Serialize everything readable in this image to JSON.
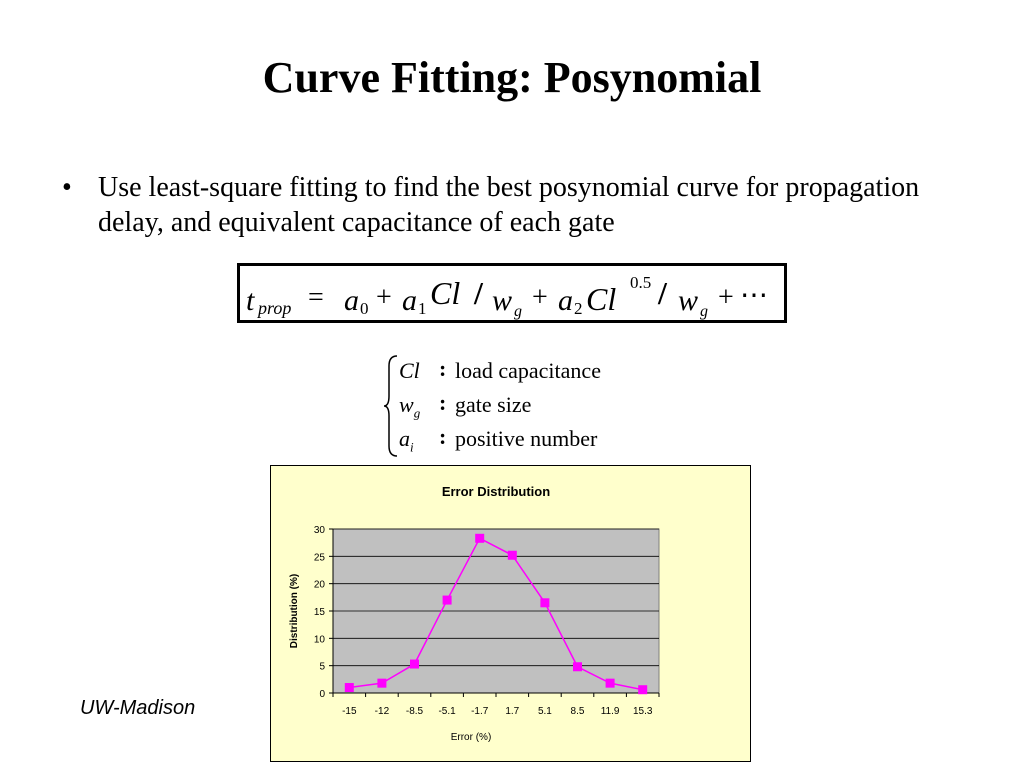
{
  "slide": {
    "title": "Curve Fitting: Posynomial",
    "bullet": "Use least-square fitting to find the best posynomial curve for propagation delay, and equivalent capacitance of each gate",
    "footer": "UW-Madison"
  },
  "formula": {
    "lhs_symbol": "t",
    "lhs_subscript": "prop",
    "equals": "=",
    "a": "a",
    "sub0": "0",
    "sub1": "1",
    "sub2": "2",
    "plus": "+",
    "cl": "Cl",
    "slash": "/",
    "w": "w",
    "g": "g",
    "exp": "0.5",
    "ellipsis": "⋯"
  },
  "definitions": [
    {
      "symbol": "Cl",
      "subscript": "",
      "colon": ":",
      "text": "load capacitance"
    },
    {
      "symbol": "w",
      "subscript": "g",
      "colon": ":",
      "text": "gate size"
    },
    {
      "symbol": "a",
      "subscript": "i",
      "colon": ":",
      "text": "positive number"
    }
  ],
  "chart_data": {
    "type": "line",
    "title": "Error Distribution",
    "xlabel": "Error (%)",
    "ylabel": "Distribution (%)",
    "categories": [
      "-15",
      "-12",
      "-8.5",
      "-5.1",
      "-1.7",
      "1.7",
      "5.1",
      "8.5",
      "11.9",
      "15.3"
    ],
    "values": [
      1.0,
      1.8,
      5.3,
      17.0,
      28.3,
      25.2,
      16.5,
      4.8,
      1.8,
      0.6
    ],
    "ylim": [
      0,
      30
    ],
    "yticks": [
      0,
      5,
      10,
      15,
      20,
      25,
      30
    ],
    "grid": true,
    "colors": {
      "line": "#ff00ff",
      "marker": "#ff00ff",
      "plot_bg": "#c0c0c0",
      "chart_bg": "#ffffcc"
    }
  }
}
